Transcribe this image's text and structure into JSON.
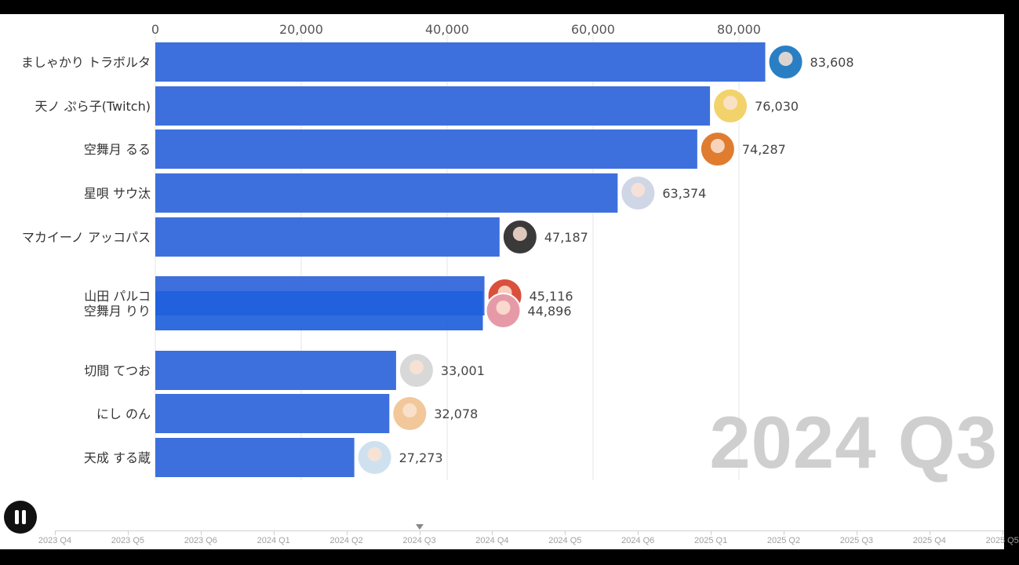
{
  "chart_data": {
    "type": "bar",
    "orientation": "horizontal",
    "title": "",
    "xlabel": "",
    "ylabel": "",
    "xlim": [
      0,
      90000
    ],
    "x_ticks": [
      0,
      20000,
      40000,
      60000,
      80000
    ],
    "x_tick_labels": [
      "0",
      "20,000",
      "40,000",
      "60,000",
      "80,000"
    ],
    "grid": true,
    "bar_color": "#3d70dc",
    "categories": [
      "ましゃかり トラボルタ",
      "天ノ ぷら子(Twitch)",
      "空舞月 るる",
      "星唄 サウ汰",
      "マカイーノ アッコパス",
      "山田 パルコ",
      "空舞月 りり",
      "切間 てつお",
      "にし のん",
      "天成 する蔵"
    ],
    "values": [
      83608,
      76030,
      74287,
      63374,
      47187,
      45116,
      44896,
      33001,
      32078,
      27273
    ],
    "value_labels": [
      "83,608",
      "76,030",
      "74,287",
      "63,374",
      "47,187",
      "45,116",
      "44,896",
      "33,001",
      "32,078",
      "27,273"
    ],
    "avatar_colors": [
      "#2a7fc4",
      "#f2d36b",
      "#e07c2f",
      "#cfd6e6",
      "#3a3a3a",
      "#d9503c",
      "#e69aa8",
      "#d8d8d8",
      "#f2c79a",
      "#cfe1ef"
    ]
  },
  "current_period": "2024 Q3",
  "timeline": {
    "labels": [
      "2023 Q4",
      "2023 Q5",
      "2023 Q6",
      "2024 Q1",
      "2024 Q2",
      "2024 Q3",
      "2024 Q4",
      "2024 Q5",
      "2024 Q6",
      "2025 Q1",
      "2025 Q2",
      "2025 Q3",
      "2025 Q4",
      "2025 Q5"
    ],
    "current_index": 5
  },
  "controls": {
    "pause_icon": "pause-icon"
  }
}
